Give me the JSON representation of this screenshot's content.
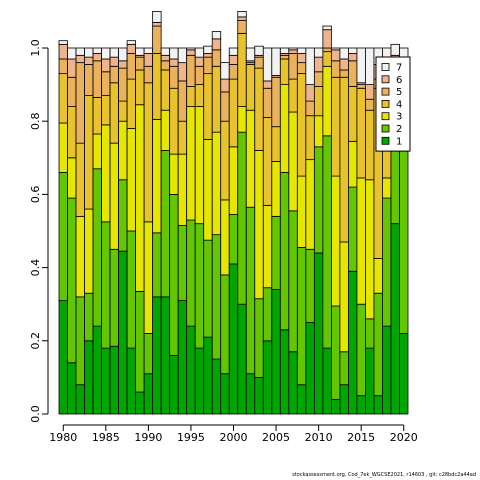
{
  "chart_data": {
    "type": "bar",
    "stacked": true,
    "xlim": [
      1979.5,
      2020.5
    ],
    "ylim": [
      0,
      1
    ],
    "x_ticks": [
      "1980",
      "1985",
      "1990",
      "1995",
      "2000",
      "2005",
      "2010",
      "2015",
      "2020"
    ],
    "y_ticks": [
      "0.0",
      "0.2",
      "0.4",
      "0.6",
      "0.8",
      "1.0"
    ],
    "legend_position": "top-right",
    "years": [
      1980,
      1981,
      1982,
      1983,
      1984,
      1985,
      1986,
      1987,
      1988,
      1989,
      1990,
      1991,
      1992,
      1993,
      1994,
      1995,
      1996,
      1997,
      1998,
      1999,
      2000,
      2001,
      2002,
      2003,
      2004,
      2005,
      2006,
      2007,
      2008,
      2009,
      2010,
      2011,
      2012,
      2013,
      2014,
      2015,
      2016,
      2017,
      2018,
      2019,
      2020
    ],
    "series": [
      {
        "name": "1",
        "color": "#00a600",
        "values": [
          0.31,
          0.14,
          0.08,
          0.2,
          0.24,
          0.18,
          0.185,
          0.445,
          0.18,
          0.06,
          0.11,
          0.32,
          0.32,
          0.16,
          0.31,
          0.24,
          0.18,
          0.21,
          0.15,
          0.11,
          0.41,
          0.3,
          0.11,
          0.1,
          0.2,
          0.34,
          0.23,
          0.17,
          0.08,
          0.25,
          0.44,
          0.18,
          0.04,
          0.08,
          0.39,
          0.05,
          0.18,
          0.05,
          0.24,
          0.52,
          0.22
        ]
      },
      {
        "name": "2",
        "color": "#63c600",
        "values": [
          0.35,
          0.45,
          0.24,
          0.13,
          0.43,
          0.345,
          0.265,
          0.195,
          0.32,
          0.275,
          0.11,
          0.175,
          0.4,
          0.44,
          0.205,
          0.29,
          0.34,
          0.265,
          0.34,
          0.27,
          0.135,
          0.47,
          0.455,
          0.215,
          0.145,
          0.2,
          0.43,
          0.385,
          0.375,
          0.2,
          0.29,
          0.58,
          0.255,
          0.09,
          0.23,
          0.25,
          0.08,
          0.28,
          0.35,
          0.36,
          0.58
        ]
      },
      {
        "name": "3",
        "color": "#e6e600",
        "values": [
          0.135,
          0.11,
          0.22,
          0.23,
          0.095,
          0.265,
          0.29,
          0.16,
          0.28,
          0.51,
          0.305,
          0.31,
          0.11,
          0.11,
          0.195,
          0.31,
          0.32,
          0.275,
          0.28,
          0.205,
          0.185,
          0.07,
          0.265,
          0.405,
          0.225,
          0.15,
          0.24,
          0.27,
          0.195,
          0.245,
          0.085,
          0.19,
          0.355,
          0.3,
          0.125,
          0.345,
          0.38,
          0.095,
          0.055,
          0.06,
          0.1
        ]
      },
      {
        "name": "4",
        "color": "#e8c32e",
        "values": [
          0.135,
          0.14,
          0.2,
          0.31,
          0.1,
          0.08,
          0.165,
          0.055,
          0.135,
          0.095,
          0.38,
          0.18,
          0.11,
          0.18,
          0.09,
          0.055,
          0.06,
          0.18,
          0.18,
          0.215,
          0.185,
          0.2,
          0.125,
          0.225,
          0.24,
          0.095,
          0.07,
          0.09,
          0.28,
          0.12,
          0.08,
          0.04,
          0.27,
          0.45,
          0.15,
          0.245,
          0.19,
          0.465,
          0.205,
          0.025,
          0.04
        ]
      },
      {
        "name": "5",
        "color": "#ebb25e",
        "values": [
          0.04,
          0.08,
          0.22,
          0.085,
          0.1,
          0.065,
          0.045,
          0.09,
          0.07,
          0.035,
          0.045,
          0.075,
          0.025,
          0.06,
          0.11,
          0.085,
          0.05,
          0.045,
          0.045,
          0.08,
          0.04,
          0.035,
          0.005,
          0.03,
          0.08,
          0.135,
          0.01,
          0.07,
          0.03,
          0.04,
          0.04,
          0.01,
          0.045,
          0.02,
          0.07,
          0.01,
          0.03,
          0.025,
          0.06,
          0.005,
          0.02
        ]
      },
      {
        "name": "6",
        "color": "#edb48e",
        "values": [
          0.04,
          0.05,
          0.02,
          0.02,
          0.02,
          0.035,
          0.025,
          0.02,
          0.025,
          0.005,
          0.035,
          0.01,
          0.015,
          0.02,
          0.05,
          0.015,
          0.025,
          0.01,
          0.03,
          0.035,
          0.025,
          0.01,
          0.005,
          0.005,
          0.02,
          0.005,
          0.005,
          0.01,
          0.025,
          0.045,
          0.04,
          0.05,
          0.03,
          0.03,
          0.02,
          0.005,
          0.04,
          0.04,
          0.04,
          0.01,
          0.015
        ]
      },
      {
        "name": "7",
        "color": "#f2f2f2",
        "values": [
          0.01,
          0.03,
          0.02,
          0.025,
          0.015,
          0.03,
          0.025,
          0.035,
          0.01,
          0.02,
          0.015,
          0.03,
          0.02,
          0.03,
          0.04,
          0.005,
          0.025,
          0.02,
          0.02,
          0.045,
          0.02,
          0.015,
          0.035,
          0.025,
          0.09,
          0.075,
          0.015,
          0.005,
          0.015,
          0.1,
          0.025,
          0.01,
          0.005,
          0.03,
          0.015,
          0.095,
          0.1,
          0.045,
          0.05,
          0.03,
          0.025
        ]
      }
    ]
  },
  "footer": {
    "text": "stockassessment.org,  Cod_7ek_WGCSE2021,  r14603 ,  git:  c28bdc2a44ad"
  }
}
